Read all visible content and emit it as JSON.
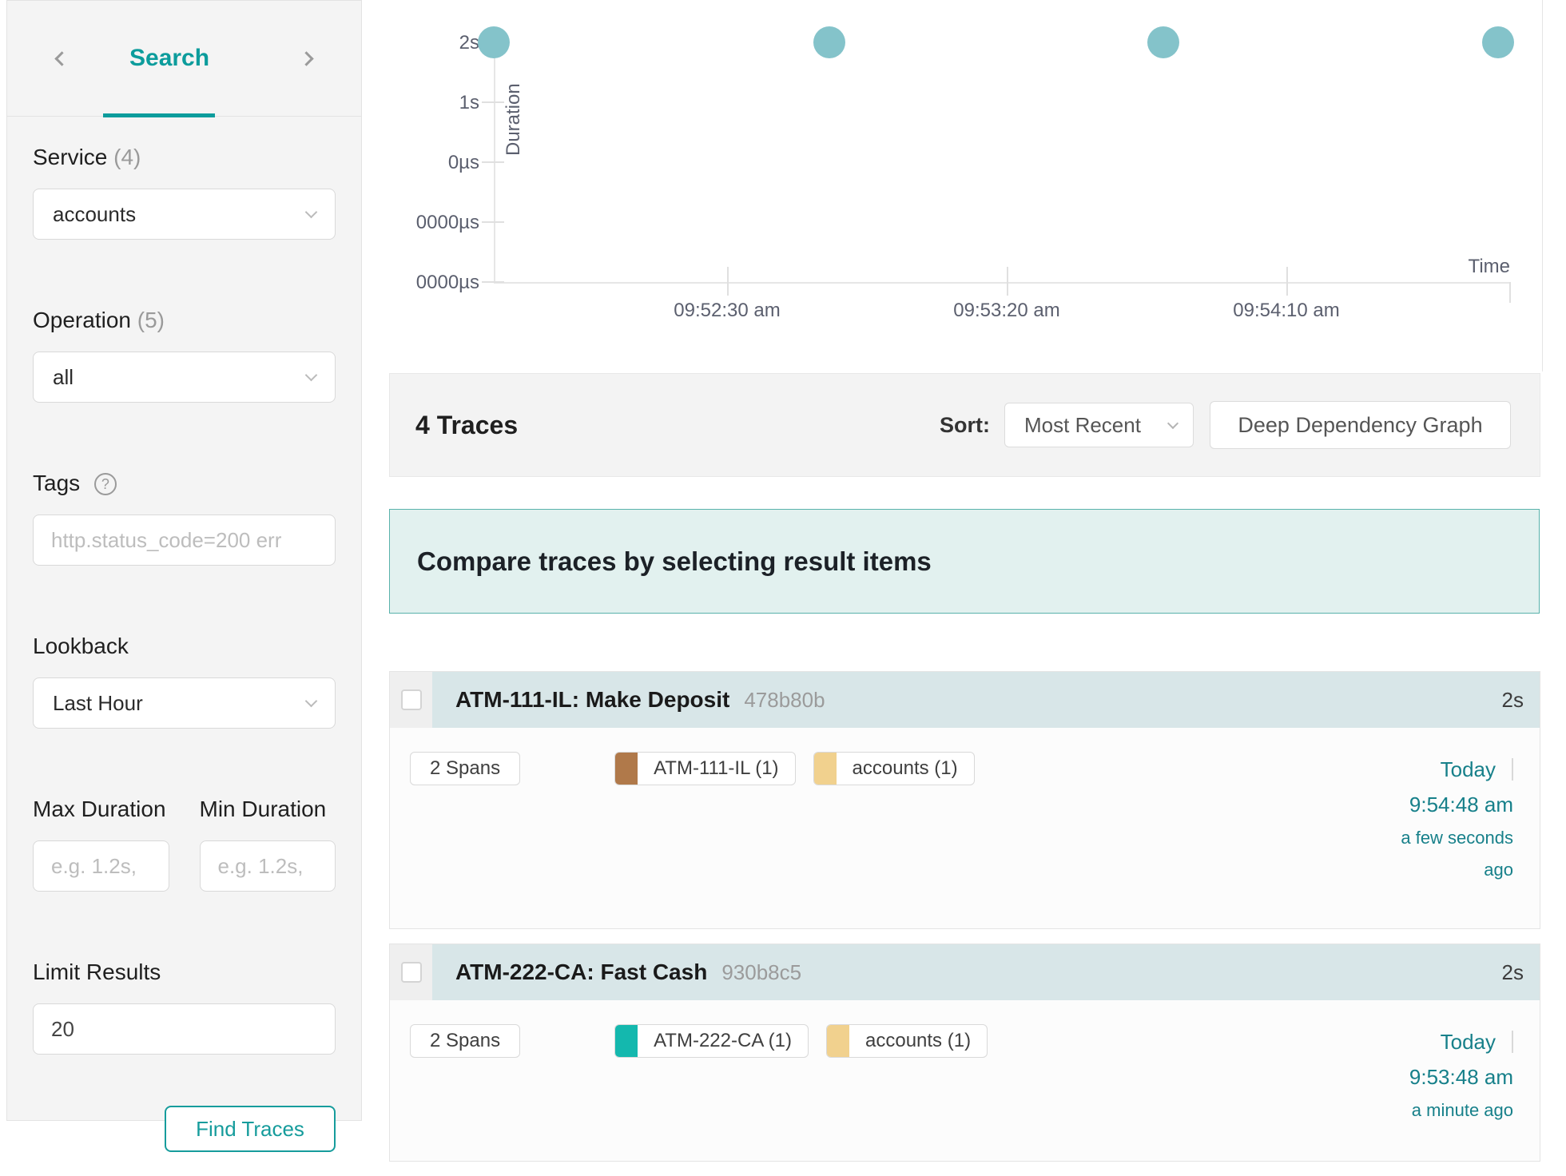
{
  "colors": {
    "accent_teal": "#0c9c9c",
    "link_teal": "#17808a",
    "dot_fill": "#84c3ca",
    "banner_bg": "#e2f1ef",
    "banner_border": "#59b2ab",
    "card_header_bg": "#d8e6e8"
  },
  "sidebar": {
    "prev_icon": "chevron-left",
    "next_icon": "chevron-right",
    "tab_label": "Search",
    "service_label": "Service",
    "service_count": "(4)",
    "service_value": "accounts",
    "operation_label": "Operation",
    "operation_count": "(5)",
    "operation_value": "all",
    "tags_label": "Tags",
    "tags_help": "?",
    "tags_placeholder": "http.status_code=200 err",
    "lookback_label": "Lookback",
    "lookback_value": "Last Hour",
    "max_duration_label": "Max Duration",
    "max_duration_placeholder": "e.g. 1.2s,",
    "min_duration_label": "Min Duration",
    "min_duration_placeholder": "e.g. 1.2s,",
    "limit_label": "Limit Results",
    "limit_value": "20",
    "find_button": "Find Traces"
  },
  "chart_data": {
    "type": "scatter",
    "xlabel": "Time",
    "ylabel": "Duration",
    "y_tick_labels": [
      "2s",
      "1s",
      "0µs",
      "0000µs",
      "0000µs"
    ],
    "x_tick_labels": [
      "09:52:30 am",
      "09:53:20 am",
      "09:54:10 am"
    ],
    "x_axis_range": [
      "9:51:48 am",
      "9:54:48 am"
    ],
    "points": [
      {
        "time": "9:51:48 am",
        "duration": "2s",
        "x_frac": 0.0
      },
      {
        "time": "9:52:48 am",
        "duration": "2s",
        "x_frac": 0.334
      },
      {
        "time": "9:53:48 am",
        "duration": "2s",
        "x_frac": 0.667
      },
      {
        "time": "9:54:48 am",
        "duration": "2s",
        "x_frac": 1.0
      }
    ],
    "legend": "none",
    "grid": "ticks-only"
  },
  "results_bar": {
    "count": "4 Traces",
    "sort_label": "Sort:",
    "sort_value": "Most Recent",
    "ddg_button": "Deep Dependency Graph"
  },
  "banner": {
    "message": "Compare traces by selecting result items"
  },
  "traces": [
    {
      "title": "ATM-111-IL: Make Deposit",
      "trace_id": "478b80b",
      "duration": "2s",
      "span_count": "2 Spans",
      "services": [
        {
          "label": "ATM-111-IL (1)",
          "color": "#b0794a"
        },
        {
          "label": "accounts (1)",
          "color": "#f1d18e"
        }
      ],
      "date": "Today",
      "time": "9:54:48 am",
      "relative_lines": [
        "a few seconds",
        "ago"
      ]
    },
    {
      "title": "ATM-222-CA: Fast Cash",
      "trace_id": "930b8c5",
      "duration": "2s",
      "span_count": "2 Spans",
      "services": [
        {
          "label": "ATM-222-CA (1)",
          "color": "#14b8ae"
        },
        {
          "label": "accounts (1)",
          "color": "#f1d18e"
        }
      ],
      "date": "Today",
      "time": "9:53:48 am",
      "relative_lines": [
        "a minute ago"
      ]
    }
  ]
}
